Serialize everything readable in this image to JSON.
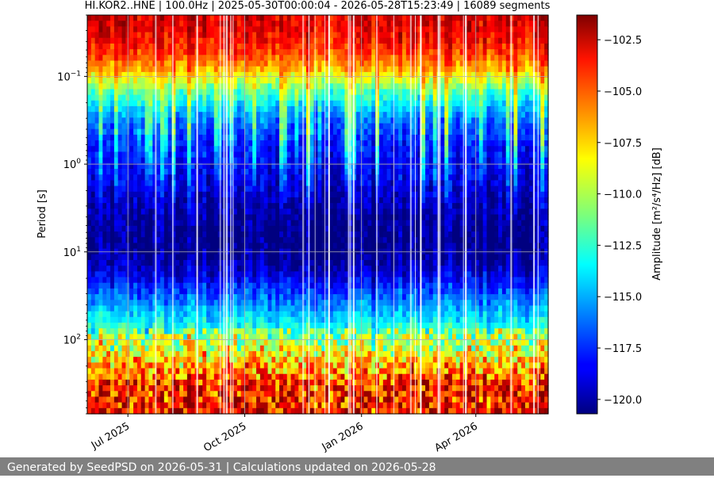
{
  "footer": {
    "text": "Generated by SeedPSD on 2026-05-31 | Calculations updated on 2026-05-28"
  },
  "chart_data": {
    "type": "heatmap",
    "title": "HI.KOR2..HNE | 100.0Hz | 2025-05-30T00:00:04 - 2026-05-28T15:23:49 | 16089 segments",
    "xlabel": "",
    "ylabel": "Period [s]",
    "colorbar_label": "Amplitude [m²/s⁴/Hz] [dB]",
    "colormap": "jet",
    "grid": true,
    "x_range": [
      "2025-05-30",
      "2026-05-28"
    ],
    "x_ticks": [
      {
        "date": "2025-07-01",
        "label": "Jul 2025"
      },
      {
        "date": "2025-10-01",
        "label": "Oct 2025"
      },
      {
        "date": "2026-01-01",
        "label": "Jan 2026"
      },
      {
        "date": "2026-04-01",
        "label": "Apr 2026"
      }
    ],
    "y_scale": "log",
    "y_inverted": true,
    "y_range": [
      0.02,
      700
    ],
    "y_ticks": [
      {
        "value": 0.1,
        "base": "10",
        "exp": "−1"
      },
      {
        "value": 1,
        "base": "10",
        "exp": "0"
      },
      {
        "value": 10,
        "base": "10",
        "exp": "1"
      },
      {
        "value": 100,
        "base": "10",
        "exp": "2"
      }
    ],
    "color_range": [
      -120.7,
      -101.3
    ],
    "colorbar_ticks": [
      {
        "value": -102.5,
        "label": "−102.5"
      },
      {
        "value": -105.0,
        "label": "−105.0"
      },
      {
        "value": -107.5,
        "label": "−107.5"
      },
      {
        "value": -110.0,
        "label": "−110.0"
      },
      {
        "value": -112.5,
        "label": "−112.5"
      },
      {
        "value": -115.0,
        "label": "−115.0"
      },
      {
        "value": -117.5,
        "label": "−117.5"
      },
      {
        "value": -120.0,
        "label": "−120.0"
      }
    ],
    "mean_profile": [
      {
        "period": 0.02,
        "db": -103.0
      },
      {
        "period": 0.03,
        "db": -103.3
      },
      {
        "period": 0.05,
        "db": -104.5
      },
      {
        "period": 0.08,
        "db": -107.0
      },
      {
        "period": 0.15,
        "db": -112.0
      },
      {
        "period": 0.3,
        "db": -116.0
      },
      {
        "period": 0.6,
        "db": -117.8
      },
      {
        "period": 1.5,
        "db": -118.8
      },
      {
        "period": 3,
        "db": -119.8
      },
      {
        "period": 7,
        "db": -120.5
      },
      {
        "period": 12,
        "db": -120.2
      },
      {
        "period": 20,
        "db": -118.5
      },
      {
        "period": 40,
        "db": -115.5
      },
      {
        "period": 80,
        "db": -112.5
      },
      {
        "period": 150,
        "db": -109.5
      },
      {
        "period": 300,
        "db": -106.0
      },
      {
        "period": 700,
        "db": -105.0
      }
    ]
  }
}
